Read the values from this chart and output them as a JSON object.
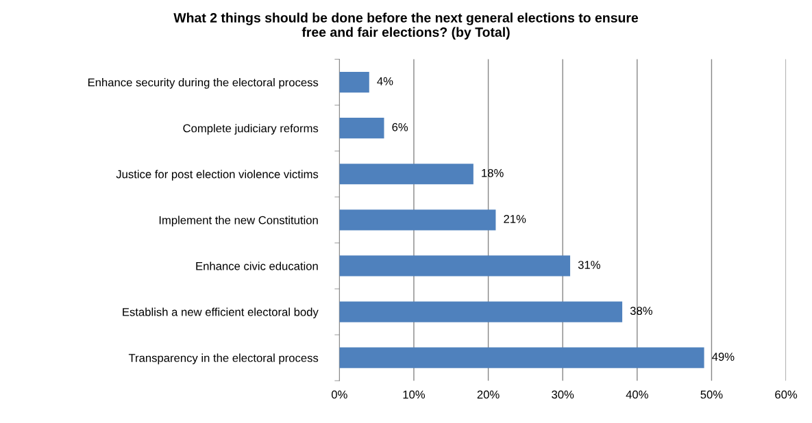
{
  "chart_data": {
    "type": "bar",
    "orientation": "horizontal",
    "title": "What 2 things should be done before the next general elections to ensure\nfree and fair elections? (by Total)",
    "categories": [
      "Enhance security during the electoral process",
      "Complete judiciary reforms",
      "Justice for post election violence victims",
      "Implement the new Constitution",
      "Enhance civic education",
      "Establish a new efficient electoral body",
      "Transparency in the electoral process"
    ],
    "values": [
      4,
      6,
      18,
      21,
      31,
      38,
      49
    ],
    "value_labels": [
      "4%",
      "6%",
      "18%",
      "21%",
      "31%",
      "38%",
      "49%"
    ],
    "color": "#4f81bd",
    "xlim": [
      0,
      60
    ],
    "xticks": [
      {
        "value": 0,
        "label": "0%"
      },
      {
        "value": 10,
        "label": "10%"
      },
      {
        "value": 20,
        "label": "20%"
      },
      {
        "value": 30,
        "label": "30%"
      },
      {
        "value": 40,
        "label": "40%"
      },
      {
        "value": 50,
        "label": "50%"
      },
      {
        "value": 60,
        "label": "60%"
      }
    ],
    "grid": "x",
    "legend": false
  }
}
